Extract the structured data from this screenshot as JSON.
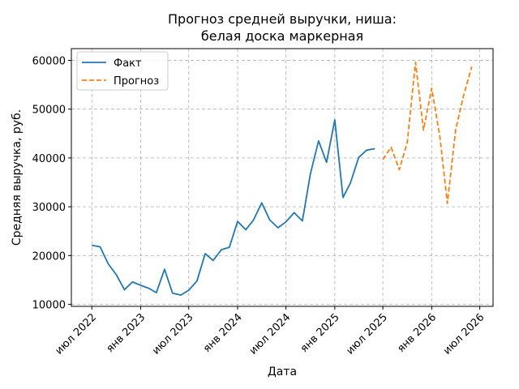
{
  "chart_data": {
    "type": "line",
    "title_line1": "Прогноз средней выручки, ниша:",
    "title_line2": "белая доска маркерная",
    "xlabel": "Дата",
    "ylabel": "Средняя выручка, руб.",
    "xlim": [
      "2022-04-15",
      "2026-08-20"
    ],
    "ylim": [
      9600,
      62400
    ],
    "grid": true,
    "legend_position": "top-left",
    "x_ticks": [
      {
        "date": "2022-07-01",
        "label": "июл 2022"
      },
      {
        "date": "2023-01-01",
        "label": "янв 2023"
      },
      {
        "date": "2023-07-01",
        "label": "июл 2023"
      },
      {
        "date": "2024-01-01",
        "label": "янв 2024"
      },
      {
        "date": "2024-07-01",
        "label": "июл 2024"
      },
      {
        "date": "2025-01-01",
        "label": "янв 2025"
      },
      {
        "date": "2025-07-01",
        "label": "июл 2025"
      },
      {
        "date": "2026-01-01",
        "label": "янв 2026"
      },
      {
        "date": "2026-07-01",
        "label": "июл 2026"
      }
    ],
    "y_ticks": [
      {
        "value": 10000,
        "label": "10000"
      },
      {
        "value": 20000,
        "label": "20000"
      },
      {
        "value": 30000,
        "label": "30000"
      },
      {
        "value": 40000,
        "label": "40000"
      },
      {
        "value": 50000,
        "label": "50000"
      },
      {
        "value": 60000,
        "label": "60000"
      }
    ],
    "series": [
      {
        "name": "Факт",
        "color": "#1f77b4",
        "style": "solid",
        "points": [
          [
            "2022-07-01",
            22100
          ],
          [
            "2022-08-01",
            21800
          ],
          [
            "2022-09-01",
            18300
          ],
          [
            "2022-10-01",
            16100
          ],
          [
            "2022-11-01",
            13000
          ],
          [
            "2022-12-01",
            14600
          ],
          [
            "2023-01-01",
            13900
          ],
          [
            "2023-02-01",
            13300
          ],
          [
            "2023-03-01",
            12400
          ],
          [
            "2023-04-01",
            17200
          ],
          [
            "2023-05-01",
            12300
          ],
          [
            "2023-06-01",
            11900
          ],
          [
            "2023-07-01",
            12900
          ],
          [
            "2023-08-01",
            14800
          ],
          [
            "2023-09-01",
            20400
          ],
          [
            "2023-10-01",
            19000
          ],
          [
            "2023-11-01",
            21200
          ],
          [
            "2023-12-01",
            21700
          ],
          [
            "2024-01-01",
            27000
          ],
          [
            "2024-02-01",
            25300
          ],
          [
            "2024-03-01",
            27300
          ],
          [
            "2024-04-01",
            30800
          ],
          [
            "2024-05-01",
            27300
          ],
          [
            "2024-06-01",
            25700
          ],
          [
            "2024-07-01",
            26900
          ],
          [
            "2024-08-01",
            28800
          ],
          [
            "2024-09-01",
            27100
          ],
          [
            "2024-10-01",
            36700
          ],
          [
            "2024-11-01",
            43500
          ],
          [
            "2024-12-01",
            39100
          ],
          [
            "2025-01-01",
            47800
          ],
          [
            "2025-02-01",
            31900
          ],
          [
            "2025-03-01",
            34900
          ],
          [
            "2025-04-01",
            40100
          ],
          [
            "2025-05-01",
            41600
          ],
          [
            "2025-06-01",
            41900
          ]
        ]
      },
      {
        "name": "Прогноз",
        "color": "#ff7f0e",
        "style": "dashed",
        "points": [
          [
            "2025-07-01",
            39700
          ],
          [
            "2025-08-01",
            42200
          ],
          [
            "2025-09-01",
            37600
          ],
          [
            "2025-10-01",
            43200
          ],
          [
            "2025-11-01",
            59600
          ],
          [
            "2025-12-01",
            45700
          ],
          [
            "2026-01-01",
            54300
          ],
          [
            "2026-02-01",
            44300
          ],
          [
            "2026-03-01",
            30700
          ],
          [
            "2026-04-01",
            45700
          ],
          [
            "2026-05-01",
            52800
          ],
          [
            "2026-06-01",
            58700
          ]
        ]
      }
    ]
  }
}
